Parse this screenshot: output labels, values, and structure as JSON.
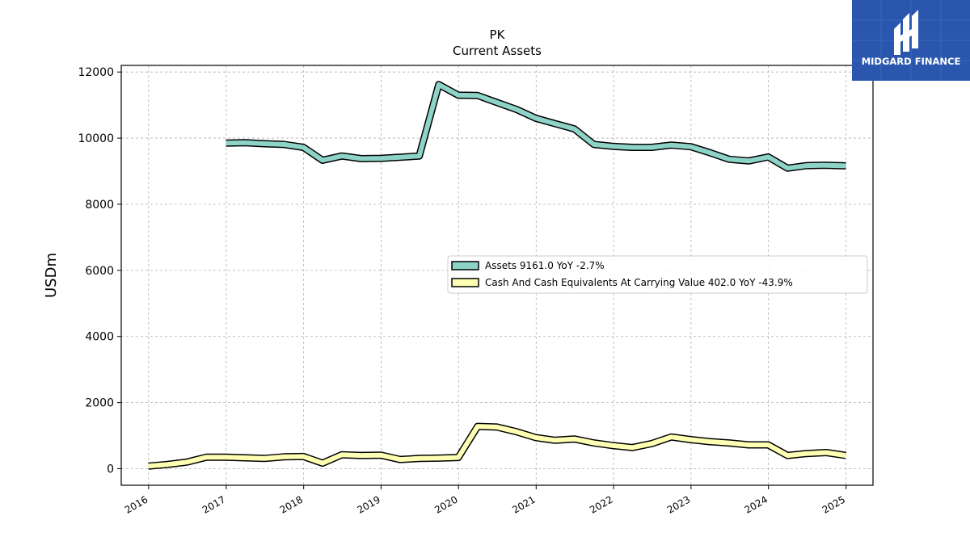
{
  "brand": {
    "name": "MIDGARD FINANCE",
    "bg_color": "#2a57ad"
  },
  "chart_data": {
    "type": "line",
    "title": "PK",
    "subtitle": "Current  Assets",
    "xlabel": "",
    "ylabel": "USDm",
    "ylim": [
      -500,
      12200
    ],
    "yticks": [
      0,
      2000,
      4000,
      6000,
      8000,
      10000,
      12000
    ],
    "xticks": [
      "2016",
      "2017",
      "2018",
      "2019",
      "2020",
      "2021",
      "2022",
      "2023",
      "2024",
      "2025"
    ],
    "grid": true,
    "legend_position": "center-right",
    "series": [
      {
        "name": "Assets  9161.0 YoY -2.7%",
        "color": "#8dd3c7",
        "x": [
          "2016-12-31",
          "2017-03-31",
          "2017-06-30",
          "2017-09-30",
          "2017-12-31",
          "2018-03-31",
          "2018-06-30",
          "2018-09-30",
          "2018-12-31",
          "2019-03-31",
          "2019-06-30",
          "2019-09-30",
          "2019-12-31",
          "2020-03-31",
          "2020-06-30",
          "2020-09-30",
          "2020-12-31",
          "2021-03-31",
          "2021-06-30",
          "2021-09-30",
          "2021-12-31",
          "2022-03-31",
          "2022-06-30",
          "2022-09-30",
          "2022-12-31",
          "2023-03-31",
          "2023-06-30",
          "2023-09-30",
          "2023-12-31",
          "2024-03-31",
          "2024-06-30",
          "2024-09-30",
          "2024-12-31"
        ],
        "values": [
          9850,
          9860,
          9830,
          9810,
          9720,
          9330,
          9460,
          9380,
          9390,
          9420,
          9460,
          11620,
          11300,
          11290,
          11080,
          10870,
          10600,
          10440,
          10280,
          9810,
          9750,
          9720,
          9720,
          9790,
          9740,
          9560,
          9360,
          9310,
          9430,
          9090,
          9170,
          9180,
          9161
        ]
      },
      {
        "name": "Cash And Cash Equivalents At Carrying Value  402.0 YoY -43.9%",
        "color": "#ffffb3",
        "x": [
          "2015-12-31",
          "2016-03-31",
          "2016-06-30",
          "2016-09-30",
          "2016-12-31",
          "2017-03-31",
          "2017-06-30",
          "2017-09-30",
          "2017-12-31",
          "2018-03-31",
          "2018-06-30",
          "2018-09-30",
          "2018-12-31",
          "2019-03-31",
          "2019-06-30",
          "2019-09-30",
          "2019-12-31",
          "2020-03-31",
          "2020-06-30",
          "2020-09-30",
          "2020-12-31",
          "2021-03-31",
          "2021-06-30",
          "2021-09-30",
          "2021-12-31",
          "2022-03-31",
          "2022-06-30",
          "2022-09-30",
          "2022-12-31",
          "2023-03-31",
          "2023-06-30",
          "2023-09-30",
          "2023-12-31",
          "2024-03-31",
          "2024-06-30",
          "2024-09-30",
          "2024-12-31"
        ],
        "values": [
          80,
          130,
          200,
          350,
          350,
          330,
          310,
          360,
          370,
          170,
          420,
          400,
          410,
          280,
          310,
          320,
          340,
          1280,
          1260,
          1120,
          940,
          860,
          900,
          780,
          700,
          640,
          760,
          960,
          880,
          820,
          780,
          720,
          720,
          400,
          460,
          490,
          402
        ]
      }
    ]
  }
}
